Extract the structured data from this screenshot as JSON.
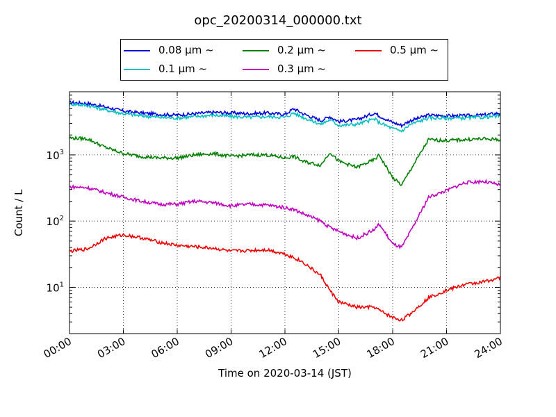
{
  "chart_data": {
    "type": "line",
    "title": "opc_20200314_000000.txt",
    "xlabel": "Time on 2020-03-14 (JST)",
    "ylabel": "Count / L",
    "yscale": "log",
    "xlim": [
      "00:00",
      "24:00"
    ],
    "ylim": [
      2,
      9000
    ],
    "grid": "dotted",
    "legend_position": "top",
    "x_ticks": [
      "00:00",
      "03:00",
      "06:00",
      "09:00",
      "12:00",
      "15:00",
      "18:00",
      "21:00",
      "24:00"
    ],
    "y_ticks": [
      {
        "value": 10,
        "label": "10^1"
      },
      {
        "value": 100,
        "label": "10^2"
      },
      {
        "value": 1000,
        "label": "10^3"
      }
    ],
    "x": [
      "00:00",
      "01:00",
      "02:00",
      "03:00",
      "04:00",
      "05:00",
      "06:00",
      "07:00",
      "08:00",
      "09:00",
      "10:00",
      "11:00",
      "12:00",
      "12:30",
      "13:00",
      "14:00",
      "14:30",
      "15:00",
      "16:00",
      "17:00",
      "17:15",
      "18:00",
      "18:30",
      "19:00",
      "20:00",
      "21:00",
      "22:00",
      "23:00",
      "24:00"
    ],
    "series": [
      {
        "name": "0.08 μm ~",
        "color": "#0000dd",
        "values": [
          6200,
          6000,
          5300,
          4600,
          4300,
          4100,
          4000,
          4200,
          4400,
          4300,
          4200,
          4300,
          4100,
          5000,
          4200,
          3300,
          3800,
          3200,
          3400,
          4300,
          3900,
          3100,
          2800,
          3300,
          4000,
          3900,
          3900,
          4000,
          4300
        ]
      },
      {
        "name": "0.1 μm ~",
        "color": "#00c0c0",
        "values": [
          5900,
          5600,
          4800,
          4200,
          3900,
          3700,
          3600,
          3800,
          4000,
          3800,
          3700,
          3800,
          3700,
          4300,
          3700,
          2900,
          3400,
          2800,
          2900,
          3500,
          3100,
          2500,
          2300,
          2900,
          3600,
          3600,
          3600,
          3700,
          3900
        ]
      },
      {
        "name": "0.2 μm ~",
        "color": "#008000",
        "values": [
          1800,
          1750,
          1300,
          1050,
          950,
          900,
          900,
          1000,
          1050,
          950,
          1000,
          1000,
          900,
          950,
          800,
          700,
          1100,
          800,
          650,
          850,
          1000,
          450,
          350,
          600,
          1700,
          1650,
          1700,
          1750,
          1700
        ]
      },
      {
        "name": "0.3 μm ~",
        "color": "#c000c0",
        "values": [
          330,
          320,
          270,
          230,
          200,
          180,
          180,
          200,
          190,
          170,
          180,
          175,
          160,
          150,
          130,
          100,
          80,
          70,
          55,
          75,
          90,
          45,
          40,
          70,
          230,
          290,
          380,
          400,
          350
        ]
      },
      {
        "name": "0.5 μm ~",
        "color": "#ee0000",
        "values": [
          35,
          38,
          55,
          62,
          56,
          48,
          43,
          41,
          39,
          35,
          36,
          37,
          32,
          28,
          24,
          15,
          9,
          6,
          5,
          5,
          4.5,
          3.5,
          3.2,
          4,
          7,
          9,
          11,
          12,
          14
        ]
      }
    ]
  }
}
